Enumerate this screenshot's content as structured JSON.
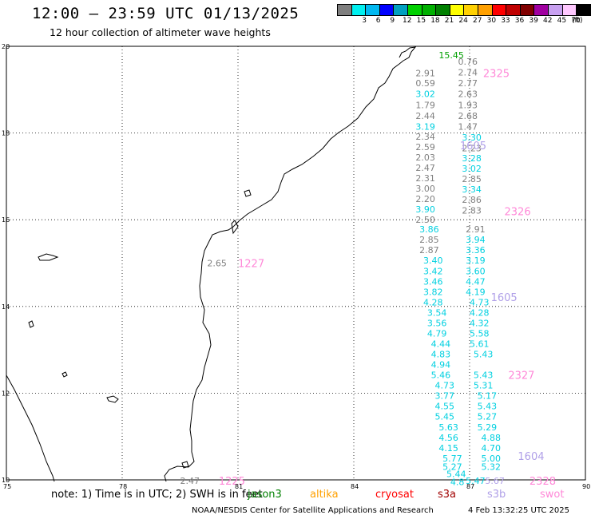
{
  "title": "12:00 – 23:59 UTC 01/13/2025",
  "subtitle": "12 hour collection of altimeter wave heights",
  "colorbar": {
    "unit": "(ft)",
    "entries": [
      {
        "label": "",
        "color": "#7f7f7f"
      },
      {
        "label": "3",
        "color": "#00f0f0"
      },
      {
        "label": "6",
        "color": "#00b8f0"
      },
      {
        "label": "9",
        "color": "#0000ff"
      },
      {
        "label": "12",
        "color": "#00a0c0"
      },
      {
        "label": "15",
        "color": "#00d000"
      },
      {
        "label": "18",
        "color": "#00b000"
      },
      {
        "label": "21",
        "color": "#008000"
      },
      {
        "label": "24",
        "color": "#ffff00"
      },
      {
        "label": "27",
        "color": "#ffd000"
      },
      {
        "label": "30",
        "color": "#ffa000"
      },
      {
        "label": "33",
        "color": "#ff0000"
      },
      {
        "label": "36",
        "color": "#c00000"
      },
      {
        "label": "39",
        "color": "#800000"
      },
      {
        "label": "42",
        "color": "#a000a0"
      },
      {
        "label": "45",
        "color": "#c8a0f0"
      },
      {
        "label": "70",
        "color": "#ffc8ff"
      },
      {
        "label": "",
        "color": "#000000"
      }
    ]
  },
  "map": {
    "lon_range": [
      75,
      90
    ],
    "lat_range": [
      10,
      20
    ],
    "x_ticks": [
      "75",
      "78",
      "81",
      "84",
      "87",
      "90"
    ],
    "y_ticks": [
      "10",
      "12",
      "14",
      "16",
      "18",
      "20"
    ],
    "colors": {
      "gray": "#808080",
      "cyan": "#00d0e0",
      "pink": "#ff88d8",
      "lavender": "#b0a0e8",
      "green": "#00a000"
    },
    "tracks": [
      {
        "col": "green",
        "text": "15.45",
        "lon": 86.2,
        "lat": 19.8
      },
      {
        "col": "gray",
        "text": "0.76",
        "lon": 86.7,
        "lat": 19.65
      },
      {
        "col": "gray",
        "text": "2.74",
        "lon": 86.7,
        "lat": 19.4
      },
      {
        "col": "gray",
        "text": "2.91",
        "lon": 85.6,
        "lat": 19.38
      },
      {
        "col": "gray",
        "text": "0.59",
        "lon": 85.6,
        "lat": 19.15
      },
      {
        "col": "gray",
        "text": "2.77",
        "lon": 86.7,
        "lat": 19.15
      },
      {
        "col": "cyan",
        "text": "3.02",
        "lon": 85.6,
        "lat": 18.9
      },
      {
        "col": "gray",
        "text": "2.63",
        "lon": 86.7,
        "lat": 18.9
      },
      {
        "col": "gray",
        "text": "1.79",
        "lon": 85.6,
        "lat": 18.65
      },
      {
        "col": "gray",
        "text": "1.93",
        "lon": 86.7,
        "lat": 18.65
      },
      {
        "col": "gray",
        "text": "2.44",
        "lon": 85.6,
        "lat": 18.4
      },
      {
        "col": "gray",
        "text": "2.68",
        "lon": 86.7,
        "lat": 18.4
      },
      {
        "col": "cyan",
        "text": "3.19",
        "lon": 85.6,
        "lat": 18.15
      },
      {
        "col": "gray",
        "text": "1.47",
        "lon": 86.7,
        "lat": 18.15
      },
      {
        "col": "gray",
        "text": "2.34",
        "lon": 85.6,
        "lat": 17.92
      },
      {
        "col": "cyan",
        "text": "3.30",
        "lon": 86.8,
        "lat": 17.9
      },
      {
        "col": "gray",
        "text": "2.59",
        "lon": 85.6,
        "lat": 17.68
      },
      {
        "col": "gray",
        "text": "2.23",
        "lon": 86.8,
        "lat": 17.65
      },
      {
        "col": "gray",
        "text": "2.03",
        "lon": 85.6,
        "lat": 17.44
      },
      {
        "col": "cyan",
        "text": "3.28",
        "lon": 86.8,
        "lat": 17.42
      },
      {
        "col": "gray",
        "text": "2.47",
        "lon": 85.6,
        "lat": 17.2
      },
      {
        "col": "cyan",
        "text": "3.02",
        "lon": 86.8,
        "lat": 17.18
      },
      {
        "col": "gray",
        "text": "2.31",
        "lon": 85.6,
        "lat": 16.96
      },
      {
        "col": "gray",
        "text": "2.85",
        "lon": 86.8,
        "lat": 16.94
      },
      {
        "col": "gray",
        "text": "3.00",
        "lon": 85.6,
        "lat": 16.72
      },
      {
        "col": "cyan",
        "text": "3.34",
        "lon": 86.8,
        "lat": 16.7
      },
      {
        "col": "gray",
        "text": "2.20",
        "lon": 85.6,
        "lat": 16.48
      },
      {
        "col": "gray",
        "text": "2.86",
        "lon": 86.8,
        "lat": 16.46
      },
      {
        "col": "cyan",
        "text": "3.90",
        "lon": 85.6,
        "lat": 16.24
      },
      {
        "col": "gray",
        "text": "2.83",
        "lon": 86.8,
        "lat": 16.22
      },
      {
        "col": "gray",
        "text": "2.50",
        "lon": 85.6,
        "lat": 16.0
      },
      {
        "col": "cyan",
        "text": "3.86",
        "lon": 85.7,
        "lat": 15.78
      },
      {
        "col": "gray",
        "text": "2.91",
        "lon": 86.9,
        "lat": 15.78
      },
      {
        "col": "gray",
        "text": "2.85",
        "lon": 85.7,
        "lat": 15.54
      },
      {
        "col": "cyan",
        "text": "3.94",
        "lon": 86.9,
        "lat": 15.54
      },
      {
        "col": "gray",
        "text": "2.87",
        "lon": 85.7,
        "lat": 15.3
      },
      {
        "col": "cyan",
        "text": "3.36",
        "lon": 86.9,
        "lat": 15.3
      },
      {
        "col": "cyan",
        "text": "3.40",
        "lon": 85.8,
        "lat": 15.06
      },
      {
        "col": "cyan",
        "text": "3.19",
        "lon": 86.9,
        "lat": 15.06
      },
      {
        "col": "cyan",
        "text": "3.42",
        "lon": 85.8,
        "lat": 14.82
      },
      {
        "col": "cyan",
        "text": "3.60",
        "lon": 86.9,
        "lat": 14.82
      },
      {
        "col": "cyan",
        "text": "3.46",
        "lon": 85.8,
        "lat": 14.58
      },
      {
        "col": "cyan",
        "text": "4.47",
        "lon": 86.9,
        "lat": 14.58
      },
      {
        "col": "cyan",
        "text": "3.82",
        "lon": 85.8,
        "lat": 14.34
      },
      {
        "col": "cyan",
        "text": "4.19",
        "lon": 86.9,
        "lat": 14.34
      },
      {
        "col": "cyan",
        "text": "4.28",
        "lon": 85.8,
        "lat": 14.1
      },
      {
        "col": "cyan",
        "text": "4.73",
        "lon": 87.0,
        "lat": 14.1
      },
      {
        "col": "cyan",
        "text": "3.54",
        "lon": 85.9,
        "lat": 13.86
      },
      {
        "col": "cyan",
        "text": "4.28",
        "lon": 87.0,
        "lat": 13.86
      },
      {
        "col": "cyan",
        "text": "3.56",
        "lon": 85.9,
        "lat": 13.62
      },
      {
        "col": "cyan",
        "text": "4.32",
        "lon": 87.0,
        "lat": 13.62
      },
      {
        "col": "cyan",
        "text": "4.79",
        "lon": 85.9,
        "lat": 13.38
      },
      {
        "col": "cyan",
        "text": "5.58",
        "lon": 87.0,
        "lat": 13.38
      },
      {
        "col": "cyan",
        "text": "4.44",
        "lon": 86.0,
        "lat": 13.14
      },
      {
        "col": "cyan",
        "text": "5.61",
        "lon": 87.0,
        "lat": 13.14
      },
      {
        "col": "cyan",
        "text": "4.83",
        "lon": 86.0,
        "lat": 12.9
      },
      {
        "col": "cyan",
        "text": "5.43",
        "lon": 87.1,
        "lat": 12.9
      },
      {
        "col": "cyan",
        "text": "4.94",
        "lon": 86.0,
        "lat": 12.66
      },
      {
        "col": "cyan",
        "text": "5.46",
        "lon": 86.0,
        "lat": 12.42
      },
      {
        "col": "cyan",
        "text": "5.43",
        "lon": 87.1,
        "lat": 12.42
      },
      {
        "col": "cyan",
        "text": "4.73",
        "lon": 86.1,
        "lat": 12.18
      },
      {
        "col": "cyan",
        "text": "5.31",
        "lon": 87.1,
        "lat": 12.18
      },
      {
        "col": "cyan",
        "text": "3.77",
        "lon": 86.1,
        "lat": 11.94
      },
      {
        "col": "cyan",
        "text": "5.17",
        "lon": 87.2,
        "lat": 11.94
      },
      {
        "col": "cyan",
        "text": "4.55",
        "lon": 86.1,
        "lat": 11.7
      },
      {
        "col": "cyan",
        "text": "5.43",
        "lon": 87.2,
        "lat": 11.7
      },
      {
        "col": "cyan",
        "text": "5.45",
        "lon": 86.1,
        "lat": 11.46
      },
      {
        "col": "cyan",
        "text": "5.27",
        "lon": 87.2,
        "lat": 11.46
      },
      {
        "col": "cyan",
        "text": "5.63",
        "lon": 86.2,
        "lat": 11.22
      },
      {
        "col": "cyan",
        "text": "5.29",
        "lon": 87.2,
        "lat": 11.22
      },
      {
        "col": "cyan",
        "text": "4.56",
        "lon": 86.2,
        "lat": 10.98
      },
      {
        "col": "cyan",
        "text": "4.88",
        "lon": 87.3,
        "lat": 10.98
      },
      {
        "col": "cyan",
        "text": "4.15",
        "lon": 86.2,
        "lat": 10.74
      },
      {
        "col": "cyan",
        "text": "4.70",
        "lon": 87.3,
        "lat": 10.74
      },
      {
        "col": "cyan",
        "text": "5.77",
        "lon": 86.3,
        "lat": 10.5
      },
      {
        "col": "cyan",
        "text": "5.00",
        "lon": 87.3,
        "lat": 10.5
      },
      {
        "col": "cyan",
        "text": "5.27",
        "lon": 86.3,
        "lat": 10.3
      },
      {
        "col": "cyan",
        "text": "5.32",
        "lon": 87.3,
        "lat": 10.3
      },
      {
        "col": "cyan",
        "text": "5.44",
        "lon": 86.4,
        "lat": 10.14
      },
      {
        "col": "cyan",
        "text": "4.8",
        "lon": 86.5,
        "lat": 9.95
      },
      {
        "col": "cyan",
        "text": "5.47",
        "lon": 86.9,
        "lat": 9.98
      },
      {
        "col": "lavender",
        "text": "5.67",
        "lon": 87.4,
        "lat": 9.98
      },
      {
        "col": "gray",
        "text": "2.65",
        "lon": 80.2,
        "lat": 15.0
      },
      {
        "col": "gray",
        "text": "2.47",
        "lon": 79.5,
        "lat": 9.98
      }
    ],
    "times": [
      {
        "col": "pink",
        "text": "2325",
        "lon": 87.35,
        "lat": 19.38
      },
      {
        "col": "lavender",
        "text": "1605",
        "lon": 86.75,
        "lat": 17.72
      },
      {
        "col": "pink",
        "text": "2326",
        "lon": 87.9,
        "lat": 16.2
      },
      {
        "col": "pink",
        "text": "1227",
        "lon": 81.0,
        "lat": 15.0
      },
      {
        "col": "lavender",
        "text": "1605",
        "lon": 87.55,
        "lat": 14.22
      },
      {
        "col": "pink",
        "text": "2327",
        "lon": 88.0,
        "lat": 12.42
      },
      {
        "col": "lavender",
        "text": "1604",
        "lon": 88.25,
        "lat": 10.55
      },
      {
        "col": "pink",
        "text": "2328",
        "lon": 88.55,
        "lat": 9.98
      },
      {
        "col": "pink",
        "text": "1225",
        "lon": 80.5,
        "lat": 9.98
      }
    ]
  },
  "note": {
    "prefix": "note:  1) Time is in UTC;  2) SWH is in feet",
    "satellites": [
      {
        "name": "jason3",
        "color": "#008000"
      },
      {
        "name": "altika",
        "color": "#ffa000"
      },
      {
        "name": "cryosat",
        "color": "#ff0000"
      },
      {
        "name": "s3a",
        "color": "#a00000"
      },
      {
        "name": "s3b",
        "color": "#b0a0e8"
      },
      {
        "name": "swot",
        "color": "#ff88d8"
      }
    ]
  },
  "footer": {
    "credit": "NOAA/NESDIS Center for Satellite Applications and Research",
    "timestamp": "4 Feb 13:32:25 UTC 2025"
  }
}
